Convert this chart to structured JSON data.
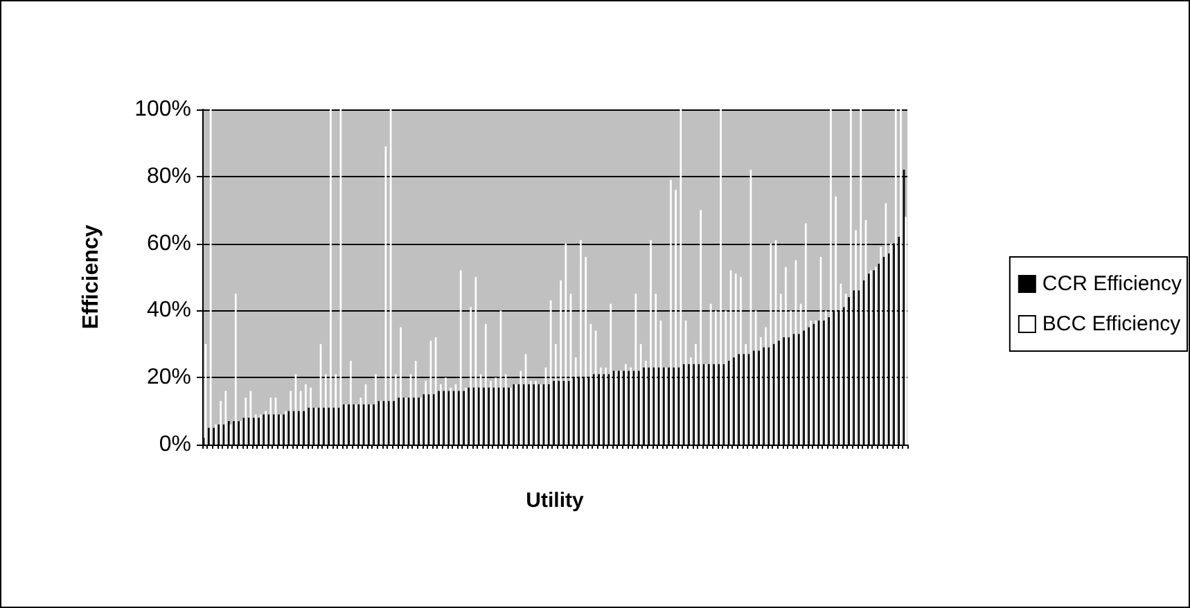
{
  "chart_data": {
    "type": "bar",
    "xlabel": "Utility",
    "ylabel": "Efficiency",
    "categories": [
      null,
      null,
      null,
      null,
      null,
      null,
      null,
      null,
      null,
      null,
      null,
      null,
      null,
      null,
      null,
      null,
      null,
      null,
      null,
      null,
      null,
      null,
      null,
      null,
      null,
      null,
      null,
      null,
      null,
      null,
      null,
      null,
      null,
      null,
      null,
      null,
      null,
      null,
      null,
      null,
      null,
      null,
      null,
      null,
      null,
      null,
      null,
      null,
      null,
      null,
      null,
      null,
      null,
      null,
      null,
      null,
      null,
      null,
      null,
      null,
      null,
      null,
      null,
      null,
      null,
      null,
      null,
      null,
      null,
      null,
      null,
      null,
      null,
      null,
      null,
      null,
      null,
      null,
      null,
      null,
      null,
      null,
      null,
      null,
      null,
      null,
      null,
      null,
      null,
      null,
      null,
      null,
      null,
      null,
      null,
      null,
      null,
      null,
      null,
      null,
      null,
      null,
      null,
      null,
      null,
      null,
      null,
      null,
      null,
      null,
      null,
      null,
      null,
      null,
      null,
      null,
      null,
      null,
      null,
      null,
      null,
      null,
      null,
      null,
      null,
      null,
      null,
      null,
      null,
      null,
      null,
      null,
      null,
      null,
      null,
      null,
      null,
      null,
      null,
      null,
      null
    ],
    "series": [
      {
        "name": "CCR Efficiency",
        "color": "#000000",
        "values": [
          2,
          5,
          5,
          6,
          6,
          7,
          7,
          7,
          8,
          8,
          8,
          8,
          9,
          9,
          9,
          9,
          9,
          10,
          10,
          10,
          10,
          11,
          11,
          11,
          11,
          11,
          11,
          11,
          12,
          12,
          12,
          12,
          12,
          12,
          12,
          13,
          13,
          13,
          13,
          14,
          14,
          14,
          14,
          14,
          15,
          15,
          15,
          16,
          16,
          16,
          16,
          16,
          16,
          17,
          17,
          17,
          17,
          17,
          17,
          17,
          17,
          17,
          18,
          18,
          18,
          18,
          18,
          18,
          18,
          18,
          19,
          19,
          19,
          19,
          20,
          20,
          20,
          20,
          21,
          21,
          21,
          21,
          22,
          22,
          22,
          22,
          22,
          22,
          23,
          23,
          23,
          23,
          23,
          23,
          23,
          23,
          24,
          24,
          24,
          24,
          24,
          24,
          24,
          24,
          24,
          25,
          26,
          27,
          27,
          27,
          28,
          28,
          29,
          29,
          30,
          31,
          32,
          32,
          33,
          33,
          34,
          35,
          36,
          37,
          37,
          38,
          40,
          40,
          41,
          44,
          46,
          46,
          49,
          51,
          52,
          54,
          56,
          57,
          60,
          62,
          82
        ]
      },
      {
        "name": "BCC Efficiency",
        "color": "#ffffff",
        "values": [
          30,
          100,
          6,
          13,
          16,
          6,
          45,
          7,
          14,
          16,
          9,
          9,
          10,
          14,
          14,
          9,
          10,
          16,
          21,
          16,
          18,
          17,
          11,
          30,
          21,
          100,
          21,
          100,
          12,
          25,
          12,
          14,
          18,
          12,
          21,
          13,
          89,
          100,
          21,
          35,
          14,
          21,
          25,
          14,
          19,
          31,
          32,
          18,
          20,
          17,
          18,
          52,
          17,
          41,
          50,
          21,
          36,
          19,
          20,
          40,
          21,
          17,
          18,
          22,
          27,
          19,
          19,
          18,
          23,
          43,
          30,
          49,
          60,
          45,
          26,
          61,
          56,
          36,
          34,
          23,
          23,
          42,
          22,
          22,
          24,
          23,
          45,
          30,
          25,
          61,
          45,
          37,
          23,
          79,
          76,
          100,
          37,
          26,
          30,
          70,
          24,
          42,
          40,
          100,
          40,
          52,
          51,
          50,
          30,
          82,
          40,
          32,
          35,
          60,
          61,
          45,
          53,
          40,
          55,
          42,
          66,
          37,
          37,
          56,
          40,
          100,
          74,
          48,
          45,
          100,
          64,
          100,
          67,
          52,
          53,
          59,
          72,
          60,
          100,
          100,
          68
        ]
      }
    ],
    "ylim": [
      0,
      100
    ],
    "yticks": [
      {
        "value": 0,
        "label": "0%"
      },
      {
        "value": 20,
        "label": "20%"
      },
      {
        "value": 40,
        "label": "40%"
      },
      {
        "value": 60,
        "label": "60%"
      },
      {
        "value": 80,
        "label": "80%"
      },
      {
        "value": 100,
        "label": "100%"
      }
    ],
    "grid": "y",
    "legend": "right"
  }
}
